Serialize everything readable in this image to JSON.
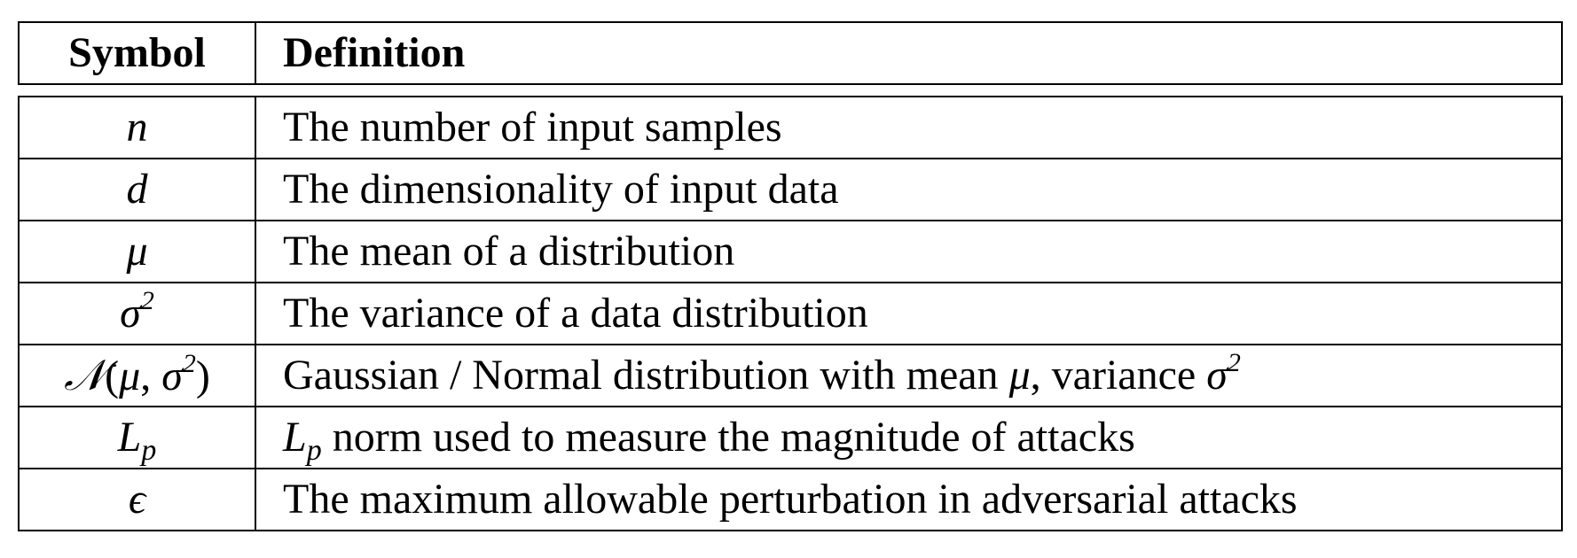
{
  "header": {
    "symbol": "Symbol",
    "definition": "Definition"
  },
  "rows": [
    {
      "symbol": "n",
      "definition": "The number of input samples"
    },
    {
      "symbol": "d",
      "definition": "The dimensionality of input data"
    },
    {
      "symbol": "μ",
      "definition": "The mean of a distribution"
    },
    {
      "symbol_base": "σ",
      "symbol_sup": "2",
      "definition": "The variance of a data distribution"
    },
    {
      "symbol_cal": "𝒩",
      "symbol_open": "(",
      "symbol_mu": "μ",
      "symbol_comma": ", ",
      "symbol_sigma": "σ",
      "symbol_sup": "2",
      "symbol_close": ")",
      "definition_a": "Gaussian / Normal distribution with mean ",
      "definition_mu": "μ",
      "definition_b": ", variance ",
      "definition_sigma": "σ",
      "definition_sup": "2"
    },
    {
      "symbol_base": "L",
      "symbol_sub": "p",
      "definition_base": "L",
      "definition_sub": "p",
      "definition_rest": " norm used to measure the magnitude of attacks"
    },
    {
      "symbol": "ϵ",
      "definition": "The maximum allowable perturbation in adversarial attacks"
    }
  ]
}
